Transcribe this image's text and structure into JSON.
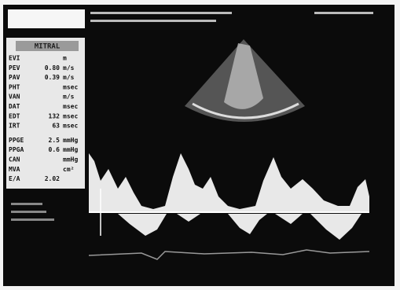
{
  "panel": {
    "title": "MITRAL",
    "rows": [
      {
        "label": "EVI",
        "unit": "m"
      },
      {
        "label": "PEV",
        "value": "0.80",
        "unit": "m/s"
      },
      {
        "label": "PAV",
        "value": "0.39",
        "unit": "m/s"
      },
      {
        "label": "PHT",
        "unit": "msec"
      },
      {
        "label": "VAN",
        "unit": "m/s"
      },
      {
        "label": "DAT",
        "unit": "msec"
      },
      {
        "label": "EDT",
        "value": "132",
        "unit": "msec"
      },
      {
        "label": "IRT",
        "value": "63",
        "unit": "msec"
      },
      {
        "label": "PPGE",
        "value": "2.5",
        "unit": "mmHg"
      },
      {
        "label": "PPGA",
        "value": "0.6",
        "unit": "mmHg"
      },
      {
        "label": "CAN",
        "unit": "mmHg"
      },
      {
        "label": "MVA",
        "unit": "cm²"
      },
      {
        "label": "E/A",
        "value": "2.02"
      }
    ]
  }
}
